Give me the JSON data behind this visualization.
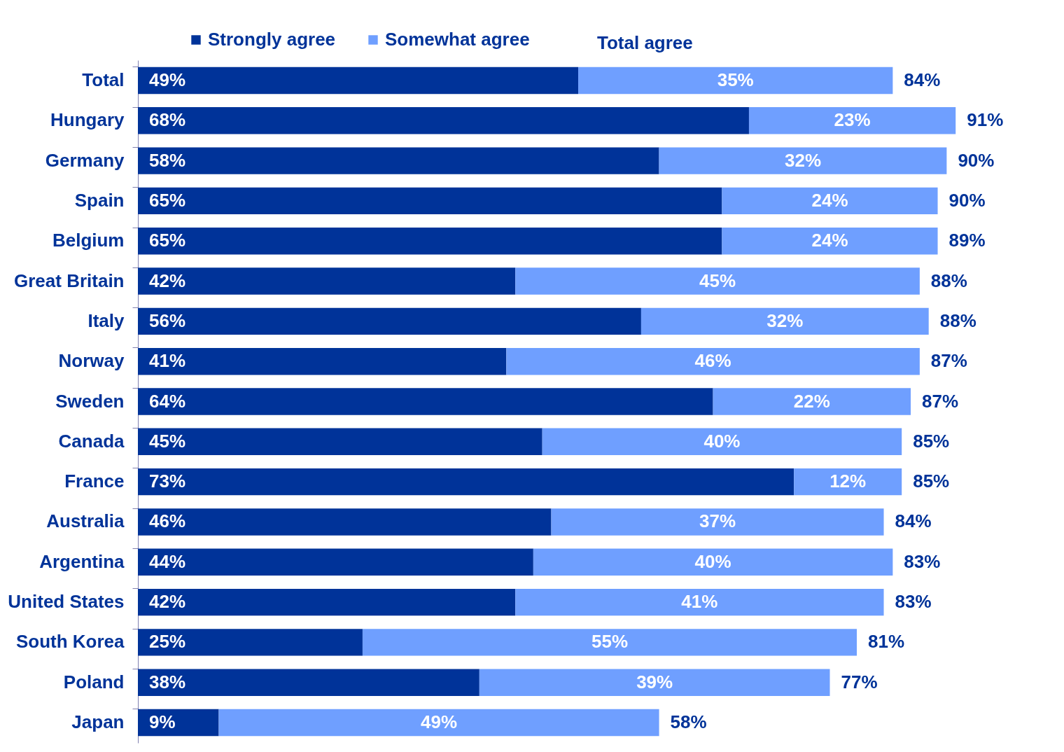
{
  "chart_data": {
    "type": "bar",
    "orientation": "horizontal",
    "stacked": true,
    "legend": "top",
    "grid": false,
    "categories": [
      "Total",
      "Hungary",
      "Germany",
      "Spain",
      "Belgium",
      "Great Britain",
      "Italy",
      "Norway",
      "Sweden",
      "Canada",
      "France",
      "Australia",
      "Argentina",
      "United States",
      "South Korea",
      "Poland",
      "Japan"
    ],
    "series": [
      {
        "name": "Strongly agree",
        "color": "#003399",
        "values": [
          49,
          68,
          58,
          65,
          65,
          42,
          56,
          41,
          64,
          45,
          73,
          46,
          44,
          42,
          25,
          38,
          9
        ],
        "value_labels": [
          "49%",
          "68%",
          "58%",
          "65%",
          "65%",
          "42%",
          "56%",
          "41%",
          "64%",
          "45%",
          "73%",
          "46%",
          "44%",
          "42%",
          "25%",
          "38%",
          "9%"
        ]
      },
      {
        "name": "Somewhat agree",
        "color": "#6f9fff",
        "values": [
          35,
          23,
          32,
          24,
          24,
          45,
          32,
          46,
          22,
          40,
          12,
          37,
          40,
          41,
          55,
          39,
          49
        ],
        "value_labels": [
          "35%",
          "23%",
          "32%",
          "24%",
          "24%",
          "45%",
          "32%",
          "46%",
          "22%",
          "40%",
          "12%",
          "37%",
          "40%",
          "41%",
          "55%",
          "39%",
          "49%"
        ]
      }
    ],
    "totals": [
      "84%",
      "91%",
      "90%",
      "90%",
      "89%",
      "88%",
      "88%",
      "87%",
      "87%",
      "85%",
      "85%",
      "84%",
      "83%",
      "83%",
      "81%",
      "77%",
      "58%"
    ],
    "annotations": [
      "Total agree"
    ]
  }
}
